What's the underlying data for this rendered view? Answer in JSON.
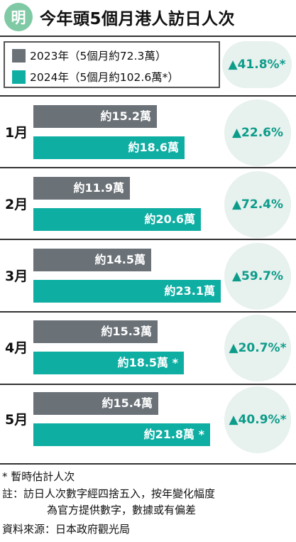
{
  "logo": {
    "char": "明"
  },
  "title": "今年頭5個月港人訪日人次",
  "colors": {
    "y2023": "#6a7177",
    "y2024": "#0faea3",
    "accent": "#0d9c8a",
    "circle_bg": "#e7f1ee"
  },
  "legend": {
    "items": [
      {
        "label": "2023年（5個月約72.3萬）"
      },
      {
        "label": "2024年（5個月約102.6萬*）"
      }
    ],
    "total_change": "▲41.8%*"
  },
  "chart_data": {
    "type": "bar",
    "orientation": "horizontal",
    "title": "今年頭5個月港人訪日人次",
    "categories": [
      "1月",
      "2月",
      "3月",
      "4月",
      "5月"
    ],
    "series": [
      {
        "name": "2023年（5個月約72.3萬）",
        "values": [
          15.2,
          11.9,
          14.5,
          15.3,
          15.4
        ]
      },
      {
        "name": "2024年（5個月約102.6萬*）",
        "values": [
          18.6,
          20.6,
          23.1,
          18.5,
          21.8
        ]
      }
    ],
    "labels_2023": [
      "約15.2萬",
      "約11.9萬",
      "約14.5萬",
      "約15.3萬",
      "約15.4萬"
    ],
    "labels_2024": [
      "約18.6萬",
      "約20.6萬",
      "約23.1萬",
      "約18.5萬 *",
      "約21.8萬 *"
    ],
    "changes": [
      "▲22.6%",
      "▲72.4%",
      "▲59.7%",
      "▲20.7%*",
      "▲40.9%*"
    ],
    "unit": "萬"
  },
  "footnotes": {
    "estimate": "* 暫時估計人次",
    "note_label": "註：",
    "note_line1": "訪日人次數字經四捨五入，按年變化幅度",
    "note_line2": "為官方提供數字，數據或有偏差",
    "source": "資料來源：日本政府觀光局"
  }
}
